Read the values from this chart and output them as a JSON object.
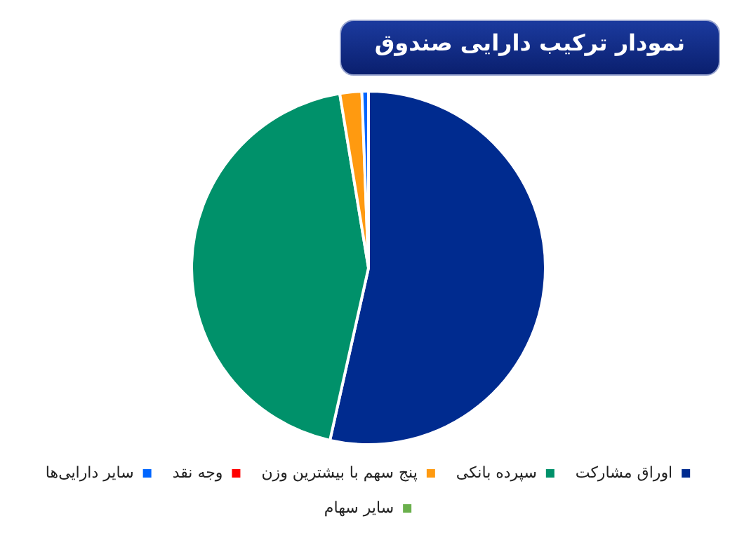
{
  "chart_data": {
    "type": "pie",
    "title": "نمودار ترکیب دارایی صندوق",
    "categories": [
      "اوراق مشارکت",
      "سپرده بانکی",
      "پنج سهم با بیشترین وزن",
      "وجه نقد",
      "سایر دارایی‌ها",
      "سایر سهام"
    ],
    "values": [
      53.5,
      43.9,
      2,
      0,
      0.6,
      0
    ],
    "colors": [
      "#002b8f",
      "#00916a",
      "#ff9a10",
      "#ff0000",
      "#0066ff",
      "#6ab04c"
    ],
    "legend": "bottom"
  }
}
